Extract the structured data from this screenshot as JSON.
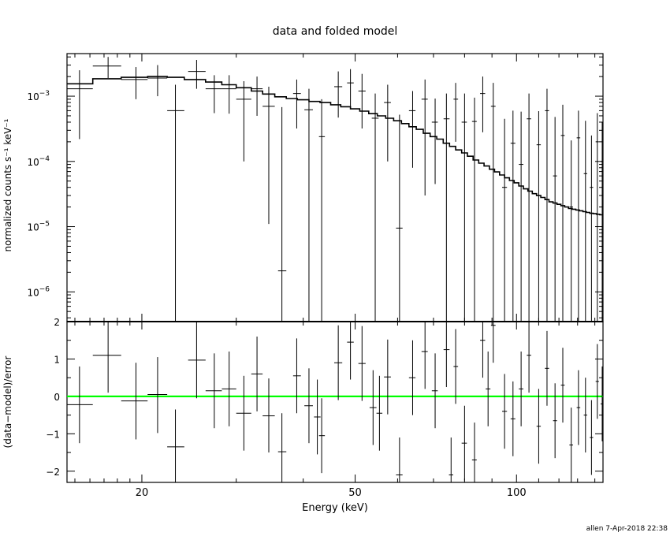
{
  "chart_data": {
    "type": "scatter",
    "title": "data and folded model",
    "xlabel": "Energy (keV)",
    "x_scale": "log",
    "xlim": [
      14.5,
      145
    ],
    "x_ticks": [
      {
        "value": 20,
        "label": "20"
      },
      {
        "value": 50,
        "label": "50"
      },
      {
        "value": 100,
        "label": "100"
      }
    ],
    "footer": "allen   7-Apr-2018 22:38",
    "top_panel": {
      "ylabel": "normalized counts s⁻¹ keV⁻¹",
      "y_scale": "log",
      "ylim": [
        3.5e-07,
        0.0045
      ],
      "y_ticks": [
        {
          "value": 0.001,
          "base": "10",
          "exp": "−3"
        },
        {
          "value": 0.0001,
          "base": "10",
          "exp": "−4"
        },
        {
          "value": 1e-05,
          "base": "10",
          "exp": "−5"
        },
        {
          "value": 1e-06,
          "base": "10",
          "exp": "−6"
        }
      ],
      "data": [
        {
          "x": 15.3,
          "xlo": 14.5,
          "xhi": 16.2,
          "y": 0.0013,
          "ylo": 0.00022,
          "yhi": 0.0025
        },
        {
          "x": 17.3,
          "xlo": 16.2,
          "xhi": 18.3,
          "y": 0.0029,
          "ylo": 0.0019,
          "yhi": 0.004
        },
        {
          "x": 19.5,
          "xlo": 18.3,
          "xhi": 20.5,
          "y": 0.0018,
          "ylo": 0.0009,
          "yhi": 0.0028
        },
        {
          "x": 21.4,
          "xlo": 20.5,
          "xhi": 22.3,
          "y": 0.0019,
          "ylo": 0.001,
          "yhi": 0.003
        },
        {
          "x": 23.1,
          "xlo": 22.3,
          "xhi": 24.0,
          "y": 0.0006,
          "ylo": 3.5e-07,
          "yhi": 0.0015
        },
        {
          "x": 25.3,
          "xlo": 24.4,
          "xhi": 26.3,
          "y": 0.0024,
          "ylo": 0.0013,
          "yhi": 0.0036
        },
        {
          "x": 27.3,
          "xlo": 26.3,
          "xhi": 28.2,
          "y": 0.0013,
          "ylo": 0.00055,
          "yhi": 0.0021
        },
        {
          "x": 29.1,
          "xlo": 28.2,
          "xhi": 30.0,
          "y": 0.0013,
          "ylo": 0.00054,
          "yhi": 0.0021
        },
        {
          "x": 31.0,
          "xlo": 30.0,
          "xhi": 32.0,
          "y": 0.0009,
          "ylo": 0.0001,
          "yhi": 0.0017
        },
        {
          "x": 32.8,
          "xlo": 32.0,
          "xhi": 33.6,
          "y": 0.0013,
          "ylo": 0.0005,
          "yhi": 0.002
        },
        {
          "x": 34.5,
          "xlo": 33.6,
          "xhi": 35.4,
          "y": 0.0007,
          "ylo": 1.1e-05,
          "yhi": 0.0014
        },
        {
          "x": 36.5,
          "xlo": 35.9,
          "xhi": 37.2,
          "y": 2.1e-06,
          "ylo": 3.5e-07,
          "yhi": 0.00068
        },
        {
          "x": 38.9,
          "xlo": 38.3,
          "xhi": 39.6,
          "y": 0.0011,
          "ylo": 0.00032,
          "yhi": 0.0018
        },
        {
          "x": 41.0,
          "xlo": 40.2,
          "xhi": 41.7,
          "y": 0.00062,
          "ylo": 3.5e-07,
          "yhi": 0.0013
        },
        {
          "x": 43.3,
          "xlo": 42.8,
          "xhi": 43.9,
          "y": 0.00024,
          "ylo": 3.5e-07,
          "yhi": 0.0009
        },
        {
          "x": 46.5,
          "xlo": 45.7,
          "xhi": 47.3,
          "y": 0.0014,
          "ylo": 0.00047,
          "yhi": 0.0024
        },
        {
          "x": 49.0,
          "xlo": 48.3,
          "xhi": 49.7,
          "y": 0.0016,
          "ylo": 0.00064,
          "yhi": 0.0026
        },
        {
          "x": 51.5,
          "xlo": 50.7,
          "xhi": 52.3,
          "y": 0.0012,
          "ylo": 0.00032,
          "yhi": 0.0022
        },
        {
          "x": 54.5,
          "xlo": 53.7,
          "xhi": 55.3,
          "y": 0.00046,
          "ylo": 3.5e-07,
          "yhi": 0.0011
        },
        {
          "x": 57.5,
          "xlo": 56.6,
          "xhi": 58.3,
          "y": 0.0008,
          "ylo": 0.0001,
          "yhi": 0.0015
        },
        {
          "x": 60.5,
          "xlo": 59.6,
          "xhi": 61.3,
          "y": 9.5e-06,
          "ylo": 3.5e-07,
          "yhi": 0.00052
        },
        {
          "x": 64.0,
          "xlo": 63.0,
          "xhi": 64.8,
          "y": 0.0006,
          "ylo": 8e-05,
          "yhi": 0.0012
        },
        {
          "x": 67.5,
          "xlo": 66.5,
          "xhi": 68.3,
          "y": 0.0009,
          "ylo": 3e-05,
          "yhi": 0.0018
        },
        {
          "x": 70.5,
          "xlo": 69.5,
          "xhi": 71.3,
          "y": 0.0004,
          "ylo": 4.5e-05,
          "yhi": 0.00092
        },
        {
          "x": 74.0,
          "xlo": 73.1,
          "xhi": 75.0,
          "y": 0.00045,
          "ylo": 3.5e-07,
          "yhi": 0.0011
        },
        {
          "x": 77.0,
          "xlo": 76.3,
          "xhi": 77.8,
          "y": 0.0009,
          "ylo": 0.0002,
          "yhi": 0.0016
        },
        {
          "x": 80.0,
          "xlo": 79.0,
          "xhi": 80.8,
          "y": 0.0004,
          "ylo": 3.5e-07,
          "yhi": 0.0011
        },
        {
          "x": 83.5,
          "xlo": 82.6,
          "xhi": 84.3,
          "y": 0.00041,
          "ylo": 3.5e-07,
          "yhi": 0.00095
        },
        {
          "x": 86.5,
          "xlo": 85.5,
          "xhi": 87.4,
          "y": 0.0011,
          "ylo": 0.00028,
          "yhi": 0.002
        },
        {
          "x": 90.5,
          "xlo": 89.6,
          "xhi": 91.4,
          "y": 0.0007,
          "ylo": 3.5e-07,
          "yhi": 0.0016
        },
        {
          "x": 95.0,
          "xlo": 94.0,
          "xhi": 96.0,
          "y": 4e-05,
          "ylo": 3.5e-07,
          "yhi": 0.00045
        },
        {
          "x": 98.5,
          "xlo": 97.5,
          "xhi": 99.5,
          "y": 0.00019,
          "ylo": 3.5e-07,
          "yhi": 0.0006
        },
        {
          "x": 102.0,
          "xlo": 101.0,
          "xhi": 103.0,
          "y": 9e-05,
          "ylo": 3.5e-07,
          "yhi": 0.00058
        },
        {
          "x": 105.5,
          "xlo": 104.5,
          "xhi": 106.5,
          "y": 0.00045,
          "ylo": 3.5e-07,
          "yhi": 0.0011
        },
        {
          "x": 110.0,
          "xlo": 109.0,
          "xhi": 111.0,
          "y": 0.00018,
          "ylo": 3.5e-07,
          "yhi": 0.00059
        },
        {
          "x": 114.0,
          "xlo": 113.0,
          "xhi": 115.0,
          "y": 0.0006,
          "ylo": 3.5e-07,
          "yhi": 0.0013
        },
        {
          "x": 118.0,
          "xlo": 117.0,
          "xhi": 119.0,
          "y": 6e-05,
          "ylo": 3.5e-07,
          "yhi": 0.00048
        },
        {
          "x": 122.0,
          "xlo": 121.0,
          "xhi": 123.0,
          "y": 0.00025,
          "ylo": 3.5e-07,
          "yhi": 0.00074
        },
        {
          "x": 126.5,
          "xlo": 125.5,
          "xhi": 127.5,
          "y": 2e-05,
          "ylo": 3.5e-07,
          "yhi": 0.00021
        },
        {
          "x": 130.5,
          "xlo": 129.5,
          "xhi": 131.5,
          "y": 0.00023,
          "ylo": 3.5e-07,
          "yhi": 0.0006
        },
        {
          "x": 134.5,
          "xlo": 133.5,
          "xhi": 135.5,
          "y": 6.5e-05,
          "ylo": 3.5e-07,
          "yhi": 0.00042
        },
        {
          "x": 138.0,
          "xlo": 137.0,
          "xhi": 139.0,
          "y": 4e-05,
          "ylo": 3.5e-07,
          "yhi": 0.00025
        },
        {
          "x": 141.5,
          "xlo": 140.5,
          "xhi": 142.5,
          "y": 0.0002,
          "ylo": 3.5e-07,
          "yhi": 0.00055
        },
        {
          "x": 144.5,
          "xlo": 143.5,
          "xhi": 145.0,
          "y": 0.0001,
          "ylo": 3.5e-07,
          "yhi": 0.0004
        }
      ],
      "model": {
        "edges": [
          14.5,
          16.2,
          18.3,
          20.5,
          22.3,
          24.0,
          26.3,
          28.2,
          30.0,
          32.0,
          33.6,
          35.4,
          37.2,
          39.0,
          41.0,
          43.0,
          45.0,
          47.0,
          49.0,
          51.0,
          53.0,
          55.0,
          57.0,
          59.0,
          61.0,
          63.0,
          65.0,
          67.0,
          69.0,
          71.0,
          73.0,
          75.0,
          77.0,
          79.0,
          81.0,
          83.0,
          85.0,
          87.0,
          89.0,
          91.0,
          93.0,
          95.0,
          97.0,
          99.0,
          101.0,
          103.0,
          105.0,
          107.0,
          109.0,
          111.0,
          113.0,
          115.0,
          117.0,
          119.0,
          121.0,
          123.0,
          125.0,
          127.0,
          129.0,
          131.0,
          133.0,
          135.0,
          137.0,
          139.0,
          141.0,
          143.0,
          145.0
        ],
        "values": [
          0.00155,
          0.00185,
          0.00195,
          0.002,
          0.00195,
          0.0018,
          0.00165,
          0.0015,
          0.00135,
          0.0012,
          0.00108,
          0.00098,
          0.00092,
          0.00088,
          0.00083,
          0.0008,
          0.00074,
          0.00069,
          0.00064,
          0.00059,
          0.00054,
          0.0005,
          0.00046,
          0.00042,
          0.00038,
          0.00034,
          0.00031,
          0.00027,
          0.00024,
          0.00022,
          0.00019,
          0.00017,
          0.00015,
          0.000135,
          0.00012,
          0.000105,
          9.4e-05,
          8.5e-05,
          7.6e-05,
          6.9e-05,
          6.2e-05,
          5.6e-05,
          5.1e-05,
          4.7e-05,
          4.2e-05,
          3.8e-05,
          3.5e-05,
          3.2e-05,
          3e-05,
          2.8e-05,
          2.6e-05,
          2.4e-05,
          2.3e-05,
          2.2e-05,
          2.1e-05,
          2e-05,
          1.9e-05,
          1.85e-05,
          1.8e-05,
          1.75e-05,
          1.7e-05,
          1.65e-05,
          1.6e-05,
          1.58e-05,
          1.55e-05,
          1.52e-05
        ]
      }
    },
    "bottom_panel": {
      "ylabel": "(data−model)/error",
      "y_scale": "linear",
      "ylim": [
        -2.3,
        2.0
      ],
      "y_ticks": [
        {
          "value": 2,
          "label": "2"
        },
        {
          "value": 1,
          "label": "1"
        },
        {
          "value": 0,
          "label": "0"
        },
        {
          "value": -1,
          "label": "−1"
        },
        {
          "value": -2,
          "label": "−2"
        }
      ],
      "zero_line_color": "#00ff00",
      "data": [
        {
          "x": 15.3,
          "xlo": 14.5,
          "xhi": 16.2,
          "y": -0.22,
          "ylo": -1.25,
          "yhi": 0.8
        },
        {
          "x": 17.3,
          "xlo": 16.2,
          "xhi": 18.3,
          "y": 1.1,
          "ylo": 0.1,
          "yhi": 2.0
        },
        {
          "x": 19.5,
          "xlo": 18.3,
          "xhi": 20.5,
          "y": -0.12,
          "ylo": -1.15,
          "yhi": 0.9
        },
        {
          "x": 21.4,
          "xlo": 20.5,
          "xhi": 22.3,
          "y": 0.05,
          "ylo": -0.98,
          "yhi": 1.05
        },
        {
          "x": 23.1,
          "xlo": 22.3,
          "xhi": 24.0,
          "y": -1.35,
          "ylo": -2.3,
          "yhi": -0.35
        },
        {
          "x": 25.3,
          "xlo": 24.4,
          "xhi": 26.3,
          "y": 0.97,
          "ylo": -0.05,
          "yhi": 2.0
        },
        {
          "x": 27.3,
          "xlo": 26.3,
          "xhi": 28.2,
          "y": 0.15,
          "ylo": -0.85,
          "yhi": 1.15
        },
        {
          "x": 29.1,
          "xlo": 28.2,
          "xhi": 30.0,
          "y": 0.2,
          "ylo": -0.8,
          "yhi": 1.2
        },
        {
          "x": 31.0,
          "xlo": 30.0,
          "xhi": 32.0,
          "y": -0.45,
          "ylo": -1.45,
          "yhi": 0.55
        },
        {
          "x": 32.8,
          "xlo": 32.0,
          "xhi": 33.6,
          "y": 0.6,
          "ylo": -0.4,
          "yhi": 1.6
        },
        {
          "x": 34.5,
          "xlo": 33.6,
          "xhi": 35.4,
          "y": -0.52,
          "ylo": -1.5,
          "yhi": 0.48
        },
        {
          "x": 36.5,
          "xlo": 35.9,
          "xhi": 37.2,
          "y": -1.48,
          "ylo": -2.3,
          "yhi": -0.45
        },
        {
          "x": 38.9,
          "xlo": 38.3,
          "xhi": 39.6,
          "y": 0.55,
          "ylo": -0.45,
          "yhi": 1.55
        },
        {
          "x": 41.0,
          "xlo": 40.2,
          "xhi": 41.7,
          "y": -0.25,
          "ylo": -1.25,
          "yhi": 0.75
        },
        {
          "x": 42.5,
          "xlo": 41.9,
          "xhi": 43.1,
          "y": -0.55,
          "ylo": -1.55,
          "yhi": 0.45
        },
        {
          "x": 43.3,
          "xlo": 42.8,
          "xhi": 43.9,
          "y": -1.05,
          "ylo": -2.05,
          "yhi": -0.05
        },
        {
          "x": 46.5,
          "xlo": 45.7,
          "xhi": 47.3,
          "y": 0.9,
          "ylo": -0.1,
          "yhi": 1.9
        },
        {
          "x": 49.0,
          "xlo": 48.3,
          "xhi": 49.7,
          "y": 1.45,
          "ylo": 0.45,
          "yhi": 2.0
        },
        {
          "x": 51.5,
          "xlo": 50.7,
          "xhi": 52.3,
          "y": 0.88,
          "ylo": -0.12,
          "yhi": 1.88
        },
        {
          "x": 54.0,
          "xlo": 53.2,
          "xhi": 54.8,
          "y": -0.3,
          "ylo": -1.3,
          "yhi": 0.7
        },
        {
          "x": 55.5,
          "xlo": 54.8,
          "xhi": 56.2,
          "y": -0.45,
          "ylo": -1.45,
          "yhi": 0.55
        },
        {
          "x": 57.5,
          "xlo": 56.6,
          "xhi": 58.3,
          "y": 0.52,
          "ylo": -0.48,
          "yhi": 1.52
        },
        {
          "x": 60.5,
          "xlo": 59.6,
          "xhi": 61.3,
          "y": -2.1,
          "ylo": -2.3,
          "yhi": -1.1
        },
        {
          "x": 64.0,
          "xlo": 63.0,
          "xhi": 64.8,
          "y": 0.5,
          "ylo": -0.5,
          "yhi": 1.5
        },
        {
          "x": 67.5,
          "xlo": 66.5,
          "xhi": 68.3,
          "y": 1.2,
          "ylo": 0.2,
          "yhi": 2.0
        },
        {
          "x": 70.5,
          "xlo": 69.5,
          "xhi": 71.3,
          "y": 0.15,
          "ylo": -0.85,
          "yhi": 1.15
        },
        {
          "x": 74.0,
          "xlo": 73.1,
          "xhi": 75.0,
          "y": 1.25,
          "ylo": 0.25,
          "yhi": 2.0
        },
        {
          "x": 75.5,
          "xlo": 74.8,
          "xhi": 76.2,
          "y": -2.1,
          "ylo": -2.3,
          "yhi": -1.1
        },
        {
          "x": 77.0,
          "xlo": 76.3,
          "xhi": 77.8,
          "y": 0.8,
          "ylo": -0.2,
          "yhi": 1.8
        },
        {
          "x": 80.0,
          "xlo": 79.0,
          "xhi": 80.8,
          "y": -1.25,
          "ylo": -2.25,
          "yhi": -0.25
        },
        {
          "x": 83.5,
          "xlo": 82.6,
          "xhi": 84.3,
          "y": -1.7,
          "ylo": -2.3,
          "yhi": -0.7
        },
        {
          "x": 86.5,
          "xlo": 85.5,
          "xhi": 87.4,
          "y": 1.5,
          "ylo": 0.5,
          "yhi": 2.0
        },
        {
          "x": 88.5,
          "xlo": 87.6,
          "xhi": 89.4,
          "y": 0.2,
          "ylo": -0.8,
          "yhi": 1.2
        },
        {
          "x": 90.5,
          "xlo": 89.6,
          "xhi": 91.4,
          "y": 1.9,
          "ylo": 0.9,
          "yhi": 2.0
        },
        {
          "x": 95.0,
          "xlo": 94.0,
          "xhi": 96.0,
          "y": -0.4,
          "ylo": -1.4,
          "yhi": 0.6
        },
        {
          "x": 98.5,
          "xlo": 97.5,
          "xhi": 99.5,
          "y": -0.6,
          "ylo": -1.6,
          "yhi": 0.4
        },
        {
          "x": 102.0,
          "xlo": 101.0,
          "xhi": 103.0,
          "y": 0.2,
          "ylo": -0.8,
          "yhi": 1.2
        },
        {
          "x": 105.5,
          "xlo": 104.5,
          "xhi": 106.5,
          "y": 1.1,
          "ylo": 0.1,
          "yhi": 2.0
        },
        {
          "x": 110.0,
          "xlo": 109.0,
          "xhi": 111.0,
          "y": -0.8,
          "ylo": -1.8,
          "yhi": 0.2
        },
        {
          "x": 114.0,
          "xlo": 113.0,
          "xhi": 115.0,
          "y": 0.75,
          "ylo": -0.25,
          "yhi": 1.75
        },
        {
          "x": 118.0,
          "xlo": 117.0,
          "xhi": 119.0,
          "y": -0.65,
          "ylo": -1.65,
          "yhi": 0.35
        },
        {
          "x": 122.0,
          "xlo": 121.0,
          "xhi": 123.0,
          "y": 0.3,
          "ylo": -0.7,
          "yhi": 1.3
        },
        {
          "x": 126.5,
          "xlo": 125.5,
          "xhi": 127.5,
          "y": -1.3,
          "ylo": -2.3,
          "yhi": -0.3
        },
        {
          "x": 130.5,
          "xlo": 129.5,
          "xhi": 131.5,
          "y": -0.3,
          "ylo": -1.3,
          "yhi": 0.7
        },
        {
          "x": 134.5,
          "xlo": 133.5,
          "xhi": 135.5,
          "y": -0.5,
          "ylo": -1.5,
          "yhi": 0.5
        },
        {
          "x": 138.0,
          "xlo": 137.0,
          "xhi": 139.0,
          "y": -1.1,
          "ylo": -2.1,
          "yhi": -0.1
        },
        {
          "x": 141.5,
          "xlo": 140.5,
          "xhi": 142.5,
          "y": 0.4,
          "ylo": -0.6,
          "yhi": 1.4
        },
        {
          "x": 144.5,
          "xlo": 143.5,
          "xhi": 145.0,
          "y": -0.2,
          "ylo": -1.2,
          "yhi": 0.8
        }
      ]
    }
  }
}
